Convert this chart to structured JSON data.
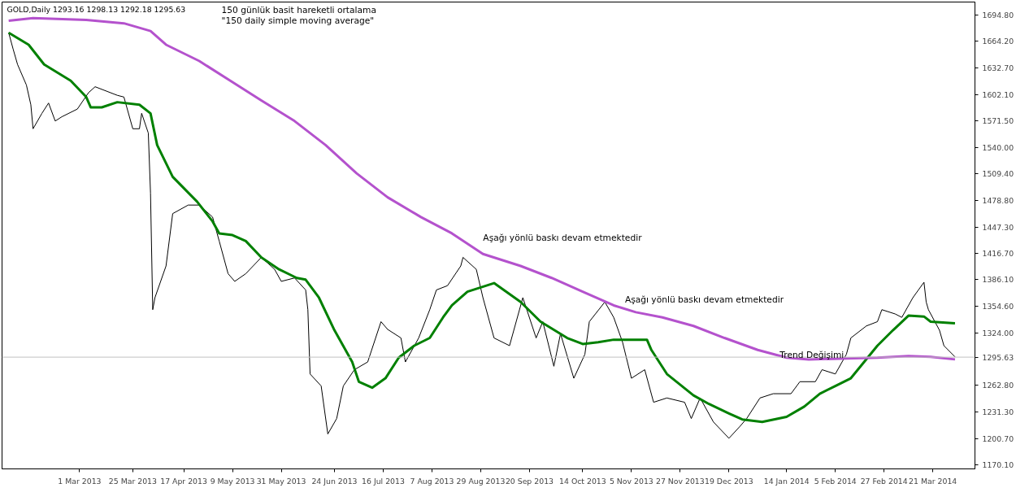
{
  "chart_data": {
    "type": "line",
    "title": "GOLD,Daily  1293.16 1298.13 1292.18 1295.63",
    "xlim": [
      "2013-01-25",
      "2014-04-09"
    ],
    "ylim": [
      1165.3,
      1709.8
    ],
    "xticks": [
      {
        "value": "2013-03-01",
        "label": "1 Mar 2013"
      },
      {
        "value": "2013-03-25",
        "label": "25 Mar 2013"
      },
      {
        "value": "2013-04-17",
        "label": "17 Apr 2013"
      },
      {
        "value": "2013-05-09",
        "label": "9 May 2013"
      },
      {
        "value": "2013-05-31",
        "label": "31 May 2013"
      },
      {
        "value": "2013-06-24",
        "label": "24 Jun 2013"
      },
      {
        "value": "2013-07-16",
        "label": "16 Jul 2013"
      },
      {
        "value": "2013-08-07",
        "label": "7 Aug 2013"
      },
      {
        "value": "2013-08-29",
        "label": "29 Aug 2013"
      },
      {
        "value": "2013-09-20",
        "label": "20 Sep 2013"
      },
      {
        "value": "2013-10-14",
        "label": "14 Oct 2013"
      },
      {
        "value": "2013-11-05",
        "label": "5 Nov 2013"
      },
      {
        "value": "2013-11-27",
        "label": "27 Nov 2013"
      },
      {
        "value": "2013-12-19",
        "label": "19 Dec 2013"
      },
      {
        "value": "2014-01-14",
        "label": "14 Jan 2014"
      },
      {
        "value": "2014-02-05",
        "label": "5 Feb 2014"
      },
      {
        "value": "2014-02-27",
        "label": "27 Feb 2014"
      },
      {
        "value": "2014-03-21",
        "label": "21 Mar 2014"
      }
    ],
    "yticks": [
      {
        "value": 1170.1,
        "label": "1170.10"
      },
      {
        "value": 1200.7,
        "label": "1200.70"
      },
      {
        "value": 1231.3,
        "label": "1231.30"
      },
      {
        "value": 1262.8,
        "label": "1262.80"
      },
      {
        "value": 1324.0,
        "label": "1324.00"
      },
      {
        "value": 1354.6,
        "label": "1354.60"
      },
      {
        "value": 1386.1,
        "label": "1386.10"
      },
      {
        "value": 1416.7,
        "label": "1416.70"
      },
      {
        "value": 1447.3,
        "label": "1447.30"
      },
      {
        "value": 1478.8,
        "label": "1478.80"
      },
      {
        "value": 1509.4,
        "label": "1509.40"
      },
      {
        "value": 1540.0,
        "label": "1540.00"
      },
      {
        "value": 1571.5,
        "label": "1571.50"
      },
      {
        "value": 1602.1,
        "label": "1602.10"
      },
      {
        "value": 1632.7,
        "label": "1632.70"
      },
      {
        "value": 1664.2,
        "label": "1664.20"
      },
      {
        "value": 1694.8,
        "label": "1694.80"
      }
    ],
    "grid": false,
    "marker": "none",
    "line_style": "solid",
    "ref_lines": [
      {
        "axis": "y",
        "value": 1295.63,
        "label": "1295.63",
        "color": "#c0c0c0"
      }
    ],
    "annotations": [
      "150 günlük basit hareketli ortalama",
      "\"150 daily simple moving average\"",
      {
        "text": "Aşağı yönlü baskı devam etmektedir",
        "x": "2013-08-22",
        "y": 1430
      },
      {
        "text": "Aşağı yönlü baskı devam etmektedir",
        "x": "2013-10-25",
        "y": 1358
      },
      {
        "text": "Trend Değişimi",
        "x": "2014-02-14",
        "y": 1294
      }
    ],
    "series": [
      {
        "color": "#000000",
        "x": [
          "2013-01-28",
          "2013-01-30",
          "2013-02-01",
          "2013-02-05",
          "2013-02-07",
          "2013-02-08",
          "2013-02-12",
          "2013-02-15",
          "2013-02-18",
          "2013-02-21",
          "2013-02-28",
          "2013-03-05",
          "2013-03-08",
          "2013-03-18",
          "2013-03-21",
          "2013-03-25",
          "2013-03-28",
          "2013-03-29",
          "2013-04-01",
          "2013-04-02",
          "2013-04-03",
          "2013-04-04",
          "2013-04-09",
          "2013-04-12",
          "2013-04-19",
          "2013-04-24",
          "2013-04-30",
          "2013-05-03",
          "2013-05-07",
          "2013-05-10",
          "2013-05-15",
          "2013-05-22",
          "2013-05-28",
          "2013-05-31",
          "2013-06-06",
          "2013-06-11",
          "2013-06-12",
          "2013-06-13",
          "2013-06-18",
          "2013-06-21",
          "2013-06-25",
          "2013-06-28",
          "2013-07-03",
          "2013-07-09",
          "2013-07-15",
          "2013-07-18",
          "2013-07-24",
          "2013-07-26",
          "2013-08-01",
          "2013-08-06",
          "2013-08-09",
          "2013-08-14",
          "2013-08-20",
          "2013-08-21",
          "2013-08-27",
          "2013-08-30",
          "2013-09-04",
          "2013-09-11",
          "2013-09-17",
          "2013-09-23",
          "2013-09-26",
          "2013-10-01",
          "2013-10-04",
          "2013-10-10",
          "2013-10-15",
          "2013-10-17",
          "2013-10-24",
          "2013-10-28",
          "2013-11-01",
          "2013-11-05",
          "2013-11-11",
          "2013-11-15",
          "2013-11-21",
          "2013-11-29",
          "2013-12-02",
          "2013-12-06",
          "2013-12-12",
          "2013-12-19",
          "2013-12-24",
          "2013-12-27",
          "2014-01-02",
          "2014-01-08",
          "2014-01-16",
          "2014-01-20",
          "2014-01-27",
          "2014-01-30",
          "2014-02-05",
          "2014-02-10",
          "2014-02-12",
          "2014-02-19",
          "2014-02-24",
          "2014-02-26",
          "2014-03-04",
          "2014-03-07",
          "2014-03-12",
          "2014-03-17",
          "2014-03-18",
          "2014-03-19",
          "2014-03-24",
          "2014-03-26",
          "2014-03-31"
        ],
        "values": [
          1674,
          1655,
          1637,
          1613,
          1590,
          1562,
          1580,
          1592,
          1571,
          1576,
          1585,
          1604,
          1611,
          1601,
          1599,
          1562,
          1562,
          1580,
          1557,
          1487,
          1351,
          1365,
          1402,
          1463,
          1473,
          1473,
          1459,
          1431,
          1393,
          1384,
          1393,
          1412,
          1398,
          1384,
          1388,
          1374,
          1351,
          1276,
          1262,
          1206,
          1224,
          1262,
          1281,
          1290,
          1337,
          1328,
          1318,
          1290,
          1318,
          1351,
          1374,
          1379,
          1402,
          1412,
          1398,
          1365,
          1318,
          1309,
          1365,
          1318,
          1337,
          1285,
          1323,
          1271,
          1299,
          1337,
          1360,
          1342,
          1313,
          1271,
          1281,
          1243,
          1248,
          1243,
          1224,
          1248,
          1220,
          1201,
          1215,
          1224,
          1248,
          1253,
          1253,
          1267,
          1267,
          1281,
          1276,
          1299,
          1318,
          1332,
          1337,
          1351,
          1346,
          1342,
          1365,
          1383,
          1360,
          1351,
          1327,
          1309,
          1296
        ]
      },
      {
        "color": "#008000",
        "x": [
          "2013-01-28",
          "2013-02-06",
          "2013-02-13",
          "2013-02-25",
          "2013-03-04",
          "2013-03-06",
          "2013-03-11",
          "2013-03-18",
          "2013-03-28",
          "2013-04-02",
          "2013-04-05",
          "2013-04-12",
          "2013-04-23",
          "2013-04-30",
          "2013-05-03",
          "2013-05-09",
          "2013-05-15",
          "2013-05-22",
          "2013-05-30",
          "2013-06-07",
          "2013-06-11",
          "2013-06-17",
          "2013-06-24",
          "2013-07-02",
          "2013-07-05",
          "2013-07-11",
          "2013-07-17",
          "2013-07-23",
          "2013-07-30",
          "2013-08-06",
          "2013-08-12",
          "2013-08-16",
          "2013-08-23",
          "2013-09-04",
          "2013-09-16",
          "2013-09-25",
          "2013-10-07",
          "2013-10-14",
          "2013-10-21",
          "2013-10-28",
          "2013-11-04",
          "2013-11-12",
          "2013-11-14",
          "2013-11-21",
          "2013-12-03",
          "2013-12-10",
          "2013-12-19",
          "2013-12-25",
          "2014-01-03",
          "2014-01-14",
          "2014-01-22",
          "2014-01-29",
          "2014-02-05",
          "2014-02-12",
          "2014-02-24",
          "2014-03-03",
          "2014-03-10",
          "2014-03-17",
          "2014-03-20",
          "2014-03-31"
        ],
        "values": [
          1674,
          1660,
          1637,
          1618,
          1599,
          1587,
          1587,
          1593,
          1590,
          1580,
          1543,
          1506,
          1477,
          1454,
          1440,
          1438,
          1431,
          1412,
          1398,
          1388,
          1386,
          1365,
          1327,
          1290,
          1267,
          1260,
          1271,
          1295,
          1309,
          1318,
          1342,
          1356,
          1372,
          1382,
          1360,
          1337,
          1318,
          1311,
          1313,
          1316,
          1316,
          1316,
          1304,
          1276,
          1251,
          1241,
          1230,
          1223,
          1220,
          1226,
          1238,
          1253,
          1262,
          1271,
          1309,
          1327,
          1344,
          1343,
          1337,
          1335
        ]
      },
      {
        "color": "#b452cd",
        "x": [
          "2013-01-28",
          "2013-02-08",
          "2013-03-04",
          "2013-03-21",
          "2013-04-02",
          "2013-04-09",
          "2013-04-24",
          "2013-05-08",
          "2013-05-22",
          "2013-06-06",
          "2013-06-20",
          "2013-07-04",
          "2013-07-18",
          "2013-08-02",
          "2013-08-16",
          "2013-08-30",
          "2013-09-16",
          "2013-09-30",
          "2013-10-14",
          "2013-10-28",
          "2013-11-07",
          "2013-11-19",
          "2013-12-03",
          "2013-12-17",
          "2014-01-01",
          "2014-01-14",
          "2014-01-24",
          "2014-02-10",
          "2014-02-24",
          "2014-03-10",
          "2014-03-20",
          "2014-03-31"
        ],
        "values": [
          1688,
          1691,
          1689,
          1685,
          1676,
          1660,
          1641,
          1618,
          1595,
          1571,
          1543,
          1510,
          1482,
          1459,
          1440,
          1416,
          1402,
          1388,
          1372,
          1356,
          1348,
          1342,
          1332,
          1318,
          1304,
          1295,
          1293,
          1294,
          1295,
          1297,
          1296,
          1293
        ]
      }
    ]
  }
}
